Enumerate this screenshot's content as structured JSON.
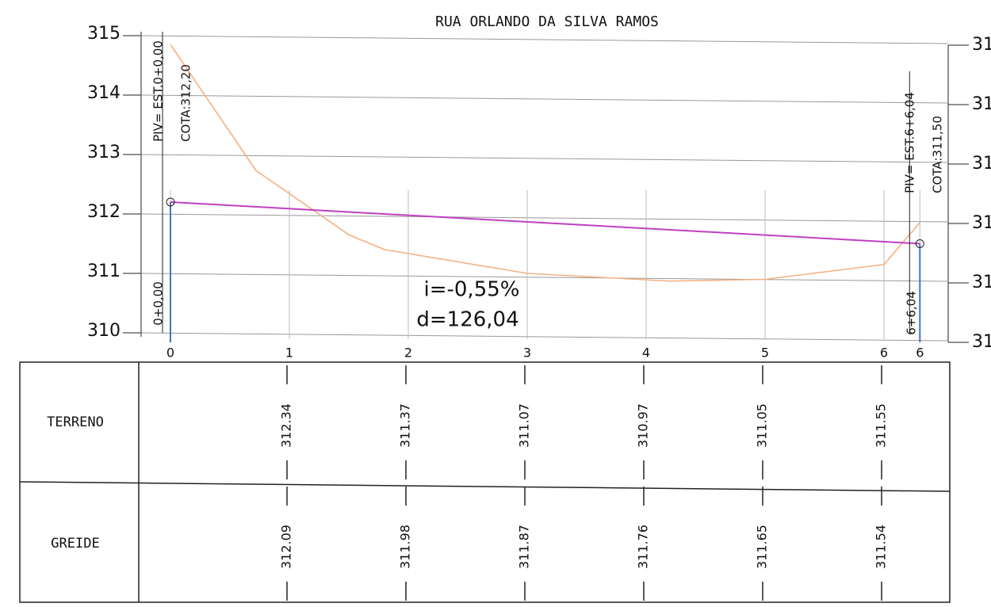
{
  "chart_data": {
    "type": "line",
    "title": "RUA ORLANDO DA SILVA RAMOS",
    "xlim": [
      0,
      6.302
    ],
    "xticks": [
      0,
      1,
      2,
      3,
      4,
      5,
      6,
      {
        "value": 6.302,
        "label": "6"
      }
    ],
    "ylim": [
      310,
      315
    ],
    "yticks": [
      310,
      311,
      312,
      313,
      314,
      315
    ],
    "y2lim": [
      310,
      315
    ],
    "y2ticks": [
      {
        "value": 310,
        "label": "31"
      },
      {
        "value": 311,
        "label": "31"
      },
      {
        "value": 312,
        "label": "31"
      },
      {
        "value": 313,
        "label": "31"
      },
      {
        "value": 314,
        "label": "31"
      },
      {
        "value": 315,
        "label": "31"
      }
    ],
    "grid": true,
    "series": [
      {
        "name": "TERRENO",
        "color": "#f4b183",
        "x": [
          0,
          0.72,
          1.5,
          1.8,
          3,
          4.2,
          5,
          6,
          6.3
        ],
        "values": [
          314.85,
          312.73,
          311.65,
          311.4,
          311.0,
          310.87,
          310.9,
          311.15,
          311.85
        ]
      },
      {
        "name": "GREIDE",
        "color": "#c040c0",
        "x": [
          0,
          6.302
        ],
        "values": [
          312.2,
          311.5
        ]
      }
    ],
    "annotations": [
      "PIV= EST.0+0,00",
      "COTA:312,20",
      "0+0,00",
      "PIV= EST.6+6,04",
      "COTA:311,50",
      "6+6,04",
      "i=-0,55%",
      "d=126,04"
    ],
    "table": {
      "stations": [
        1,
        2,
        3,
        4,
        5,
        6
      ],
      "rows": [
        {
          "label": "TERRENO",
          "values": [
            312.34,
            311.37,
            311.07,
            310.97,
            311.05,
            311.55
          ]
        },
        {
          "label": "GREIDE",
          "values": [
            312.09,
            311.98,
            311.87,
            311.76,
            311.65,
            311.54
          ]
        }
      ]
    }
  }
}
